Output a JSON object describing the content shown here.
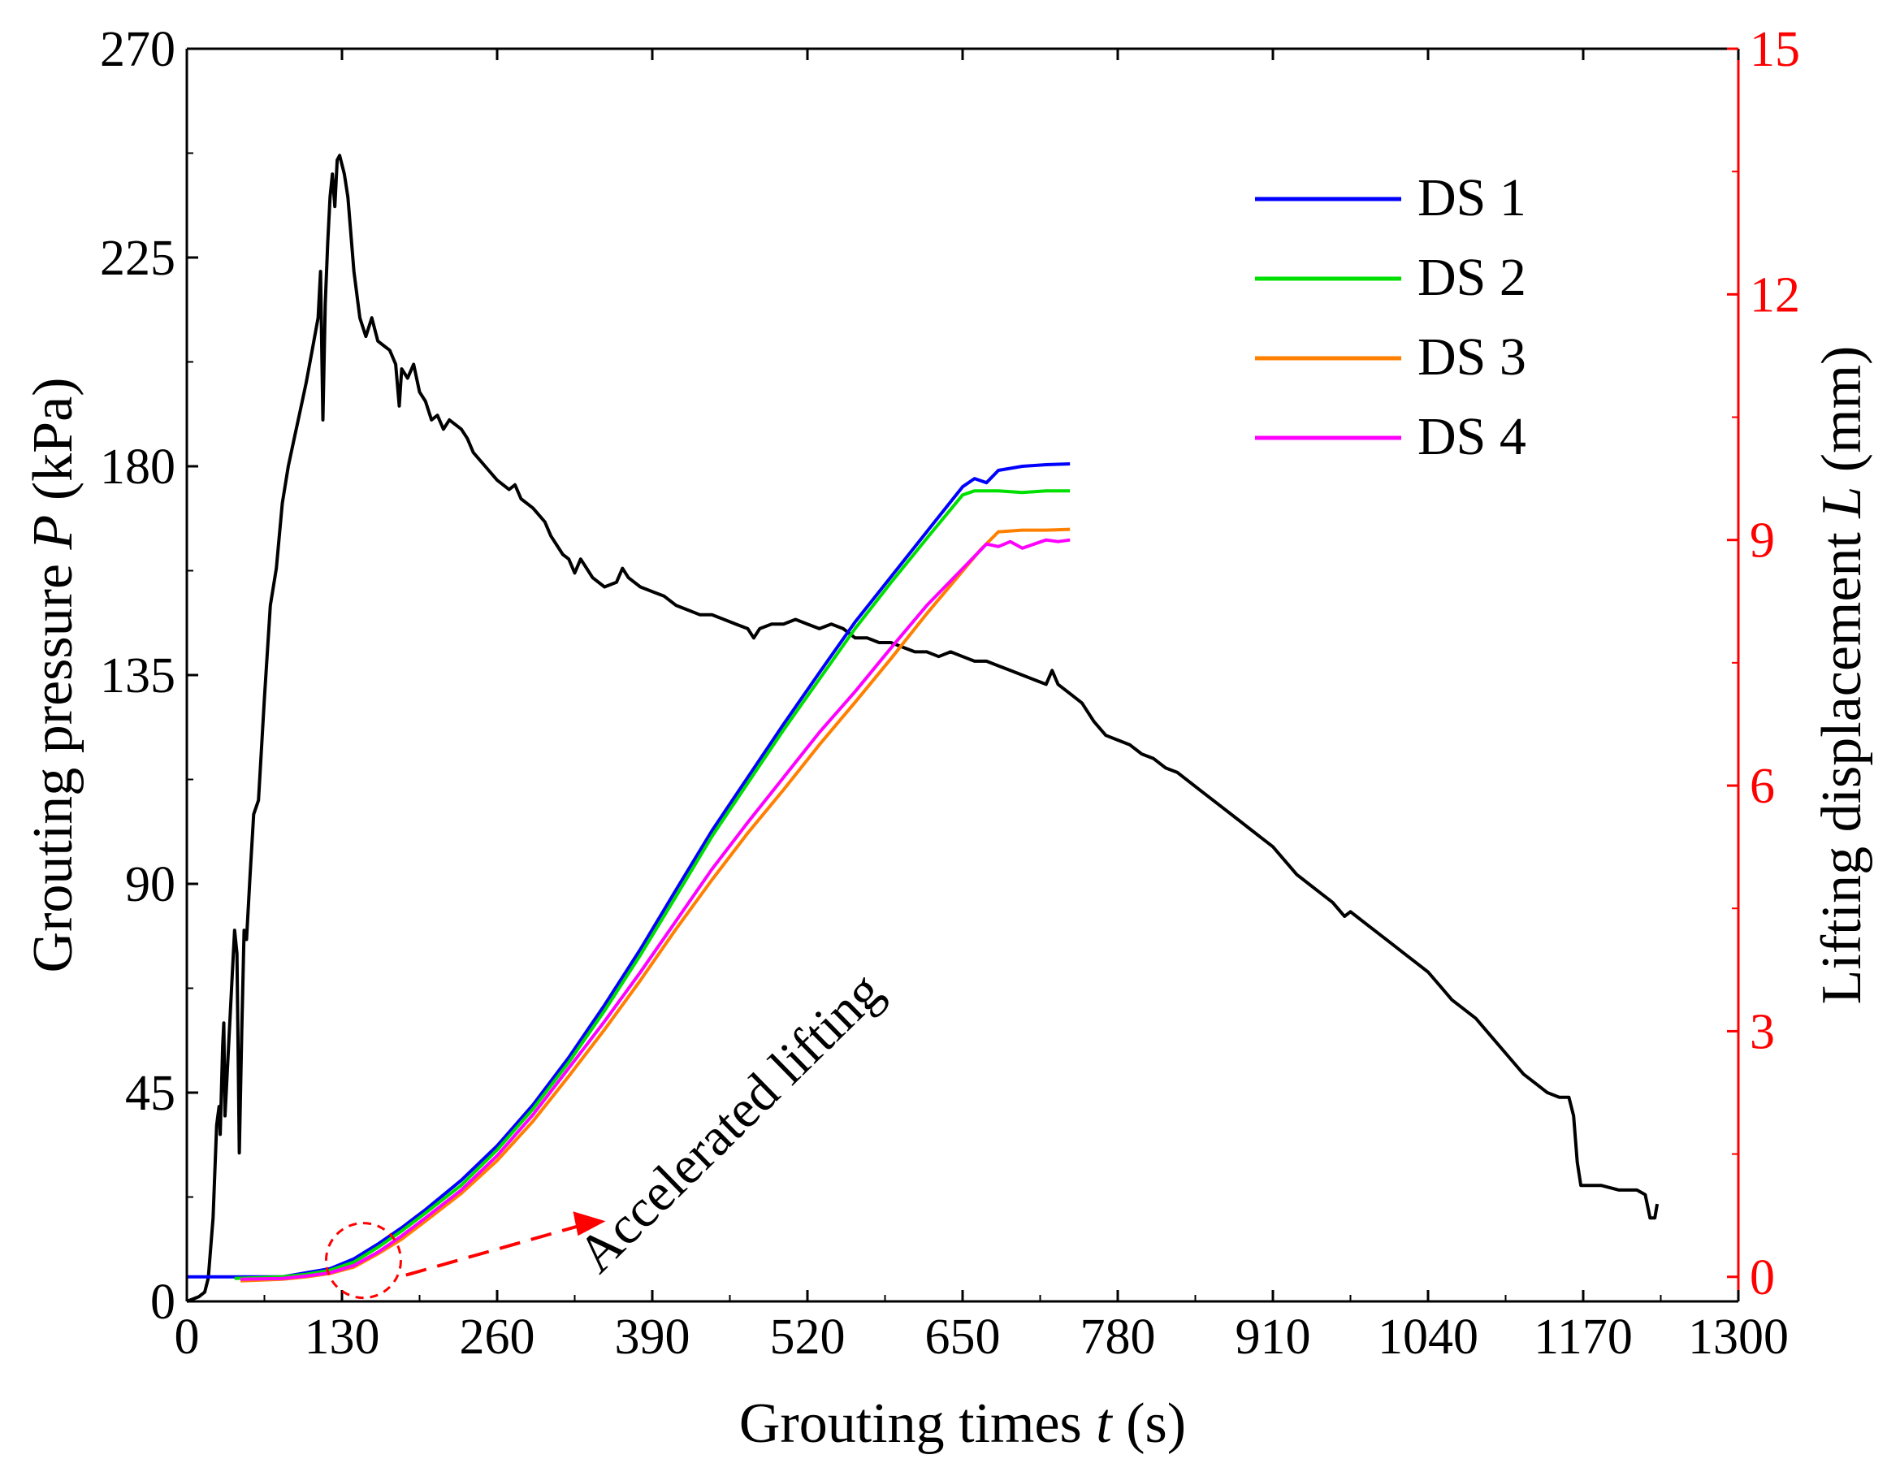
{
  "chart_data": {
    "type": "line",
    "title": "",
    "xlabel": {
      "prefix": "Grouting times ",
      "var": "t",
      "suffix": " (s)"
    },
    "ylabel_left": {
      "prefix": "Grouting pressure ",
      "var": "P",
      "suffix": " (kPa)"
    },
    "ylabel_right": {
      "prefix": "Lifting displacement ",
      "var": "L",
      "suffix": " (mm)"
    },
    "xlim": [
      0,
      1300
    ],
    "ylim_left": [
      0,
      270
    ],
    "ylim_right": [
      -0.3,
      15
    ],
    "xticks": [
      "0",
      "130",
      "260",
      "390",
      "520",
      "650",
      "780",
      "910",
      "1040",
      "1170",
      "1300"
    ],
    "yticks_left": [
      "0",
      "45",
      "90",
      "135",
      "180",
      "225",
      "270"
    ],
    "yticks_right": [
      "0",
      "3",
      "6",
      "9",
      "12",
      "15"
    ],
    "right_axis_color": "#ff0000",
    "pressure_series": {
      "name": "Grouting pressure P",
      "axis": "left",
      "color": "#000000",
      "points": [
        [
          0,
          0
        ],
        [
          10,
          1
        ],
        [
          15,
          2
        ],
        [
          18,
          5
        ],
        [
          22,
          18
        ],
        [
          25,
          38
        ],
        [
          27,
          42
        ],
        [
          28,
          36
        ],
        [
          30,
          55
        ],
        [
          31,
          60
        ],
        [
          32,
          40
        ],
        [
          35,
          55
        ],
        [
          38,
          70
        ],
        [
          40,
          80
        ],
        [
          42,
          75
        ],
        [
          44,
          32
        ],
        [
          46,
          58
        ],
        [
          48,
          80
        ],
        [
          50,
          78
        ],
        [
          53,
          92
        ],
        [
          56,
          105
        ],
        [
          60,
          108
        ],
        [
          65,
          130
        ],
        [
          70,
          150
        ],
        [
          75,
          158
        ],
        [
          80,
          172
        ],
        [
          85,
          180
        ],
        [
          90,
          186
        ],
        [
          95,
          192
        ],
        [
          100,
          198
        ],
        [
          105,
          205
        ],
        [
          110,
          212
        ],
        [
          112,
          222
        ],
        [
          114,
          190
        ],
        [
          116,
          215
        ],
        [
          118,
          228
        ],
        [
          120,
          238
        ],
        [
          122,
          243
        ],
        [
          124,
          236
        ],
        [
          126,
          246
        ],
        [
          128,
          247
        ],
        [
          130,
          245
        ],
        [
          132,
          243
        ],
        [
          135,
          238
        ],
        [
          140,
          222
        ],
        [
          145,
          212
        ],
        [
          150,
          208
        ],
        [
          155,
          212
        ],
        [
          160,
          207
        ],
        [
          165,
          206
        ],
        [
          170,
          205
        ],
        [
          175,
          202
        ],
        [
          178,
          193
        ],
        [
          180,
          201
        ],
        [
          185,
          199
        ],
        [
          190,
          202
        ],
        [
          195,
          196
        ],
        [
          200,
          194
        ],
        [
          205,
          190
        ],
        [
          210,
          191
        ],
        [
          215,
          188
        ],
        [
          220,
          190
        ],
        [
          230,
          188
        ],
        [
          235,
          186
        ],
        [
          240,
          183
        ],
        [
          250,
          180
        ],
        [
          260,
          177
        ],
        [
          270,
          175
        ],
        [
          275,
          176
        ],
        [
          280,
          173
        ],
        [
          290,
          171
        ],
        [
          300,
          168
        ],
        [
          305,
          165
        ],
        [
          310,
          163
        ],
        [
          315,
          161
        ],
        [
          320,
          160
        ],
        [
          325,
          157
        ],
        [
          330,
          160
        ],
        [
          335,
          158
        ],
        [
          340,
          156
        ],
        [
          350,
          154
        ],
        [
          360,
          155
        ],
        [
          365,
          158
        ],
        [
          370,
          156
        ],
        [
          380,
          154
        ],
        [
          390,
          153
        ],
        [
          400,
          152
        ],
        [
          410,
          150
        ],
        [
          420,
          149
        ],
        [
          430,
          148
        ],
        [
          440,
          148
        ],
        [
          450,
          147
        ],
        [
          460,
          146
        ],
        [
          470,
          145
        ],
        [
          475,
          143
        ],
        [
          480,
          145
        ],
        [
          490,
          146
        ],
        [
          500,
          146
        ],
        [
          510,
          147
        ],
        [
          520,
          146
        ],
        [
          530,
          145
        ],
        [
          540,
          146
        ],
        [
          550,
          145
        ],
        [
          560,
          143
        ],
        [
          570,
          143
        ],
        [
          580,
          142
        ],
        [
          590,
          142
        ],
        [
          600,
          141
        ],
        [
          610,
          140
        ],
        [
          620,
          140
        ],
        [
          630,
          139
        ],
        [
          640,
          140
        ],
        [
          650,
          139
        ],
        [
          660,
          138
        ],
        [
          670,
          138
        ],
        [
          680,
          137
        ],
        [
          690,
          136
        ],
        [
          700,
          135
        ],
        [
          710,
          134
        ],
        [
          720,
          133
        ],
        [
          725,
          136
        ],
        [
          730,
          133
        ],
        [
          740,
          131
        ],
        [
          750,
          129
        ],
        [
          760,
          125
        ],
        [
          770,
          122
        ],
        [
          780,
          121
        ],
        [
          790,
          120
        ],
        [
          800,
          118
        ],
        [
          810,
          117
        ],
        [
          820,
          115
        ],
        [
          830,
          114
        ],
        [
          840,
          112
        ],
        [
          850,
          110
        ],
        [
          860,
          108
        ],
        [
          870,
          106
        ],
        [
          880,
          104
        ],
        [
          890,
          102
        ],
        [
          900,
          100
        ],
        [
          910,
          98
        ],
        [
          920,
          95
        ],
        [
          930,
          92
        ],
        [
          940,
          90
        ],
        [
          950,
          88
        ],
        [
          960,
          86
        ],
        [
          970,
          83
        ],
        [
          975,
          84
        ],
        [
          980,
          83
        ],
        [
          990,
          81
        ],
        [
          1000,
          79
        ],
        [
          1010,
          77
        ],
        [
          1020,
          75
        ],
        [
          1030,
          73
        ],
        [
          1040,
          71
        ],
        [
          1050,
          68
        ],
        [
          1060,
          65
        ],
        [
          1070,
          63
        ],
        [
          1080,
          61
        ],
        [
          1090,
          58
        ],
        [
          1100,
          55
        ],
        [
          1110,
          52
        ],
        [
          1120,
          49
        ],
        [
          1130,
          47
        ],
        [
          1140,
          45
        ],
        [
          1150,
          44
        ],
        [
          1158,
          44
        ],
        [
          1162,
          40
        ],
        [
          1165,
          30
        ],
        [
          1168,
          25
        ],
        [
          1175,
          25
        ],
        [
          1185,
          25
        ],
        [
          1200,
          24
        ],
        [
          1215,
          24
        ],
        [
          1222,
          23
        ],
        [
          1226,
          18
        ],
        [
          1230,
          18
        ],
        [
          1232,
          21
        ]
      ]
    },
    "series": [
      {
        "name": "DS 1",
        "axis": "right",
        "color": "#0000ff",
        "points": [
          [
            0,
            0
          ],
          [
            50,
            0
          ],
          [
            80,
            0
          ],
          [
            100,
            0.05
          ],
          [
            120,
            0.1
          ],
          [
            140,
            0.22
          ],
          [
            160,
            0.4
          ],
          [
            180,
            0.6
          ],
          [
            200,
            0.82
          ],
          [
            230,
            1.18
          ],
          [
            260,
            1.6
          ],
          [
            290,
            2.1
          ],
          [
            320,
            2.68
          ],
          [
            350,
            3.32
          ],
          [
            380,
            4.0
          ],
          [
            410,
            4.73
          ],
          [
            440,
            5.45
          ],
          [
            470,
            6.1
          ],
          [
            500,
            6.75
          ],
          [
            530,
            7.38
          ],
          [
            560,
            8.0
          ],
          [
            590,
            8.55
          ],
          [
            620,
            9.1
          ],
          [
            650,
            9.65
          ],
          [
            660,
            9.75
          ],
          [
            670,
            9.7
          ],
          [
            680,
            9.85
          ],
          [
            700,
            9.9
          ],
          [
            720,
            9.92
          ],
          [
            740,
            9.93
          ]
        ]
      },
      {
        "name": "DS 2",
        "axis": "right",
        "color": "#00e000",
        "points": [
          [
            40,
            -0.02
          ],
          [
            80,
            0
          ],
          [
            100,
            0.03
          ],
          [
            120,
            0.08
          ],
          [
            140,
            0.18
          ],
          [
            160,
            0.36
          ],
          [
            180,
            0.56
          ],
          [
            200,
            0.78
          ],
          [
            230,
            1.12
          ],
          [
            260,
            1.55
          ],
          [
            290,
            2.05
          ],
          [
            320,
            2.62
          ],
          [
            350,
            3.25
          ],
          [
            380,
            3.93
          ],
          [
            410,
            4.65
          ],
          [
            440,
            5.38
          ],
          [
            470,
            6.03
          ],
          [
            500,
            6.68
          ],
          [
            530,
            7.3
          ],
          [
            560,
            7.92
          ],
          [
            590,
            8.48
          ],
          [
            620,
            9.02
          ],
          [
            650,
            9.55
          ],
          [
            660,
            9.6
          ],
          [
            680,
            9.6
          ],
          [
            700,
            9.58
          ],
          [
            720,
            9.6
          ],
          [
            740,
            9.6
          ]
        ]
      },
      {
        "name": "DS 3",
        "axis": "right",
        "color": "#ff8000",
        "points": [
          [
            45,
            -0.05
          ],
          [
            80,
            -0.03
          ],
          [
            100,
            0
          ],
          [
            120,
            0.04
          ],
          [
            140,
            0.12
          ],
          [
            160,
            0.28
          ],
          [
            180,
            0.46
          ],
          [
            200,
            0.68
          ],
          [
            230,
            1.02
          ],
          [
            260,
            1.42
          ],
          [
            290,
            1.9
          ],
          [
            320,
            2.45
          ],
          [
            350,
            3.02
          ],
          [
            380,
            3.62
          ],
          [
            410,
            4.25
          ],
          [
            440,
            4.85
          ],
          [
            470,
            5.42
          ],
          [
            500,
            5.95
          ],
          [
            530,
            6.5
          ],
          [
            560,
            7.02
          ],
          [
            590,
            7.55
          ],
          [
            620,
            8.1
          ],
          [
            650,
            8.62
          ],
          [
            665,
            8.88
          ],
          [
            680,
            9.1
          ],
          [
            700,
            9.12
          ],
          [
            720,
            9.12
          ],
          [
            740,
            9.13
          ]
        ]
      },
      {
        "name": "DS 4",
        "axis": "right",
        "color": "#ff00ff",
        "points": [
          [
            45,
            -0.03
          ],
          [
            80,
            -0.02
          ],
          [
            100,
            0.01
          ],
          [
            120,
            0.05
          ],
          [
            140,
            0.14
          ],
          [
            160,
            0.3
          ],
          [
            180,
            0.5
          ],
          [
            200,
            0.72
          ],
          [
            230,
            1.06
          ],
          [
            260,
            1.48
          ],
          [
            290,
            1.98
          ],
          [
            320,
            2.55
          ],
          [
            350,
            3.12
          ],
          [
            380,
            3.72
          ],
          [
            410,
            4.35
          ],
          [
            440,
            4.98
          ],
          [
            470,
            5.55
          ],
          [
            500,
            6.1
          ],
          [
            530,
            6.65
          ],
          [
            560,
            7.15
          ],
          [
            590,
            7.68
          ],
          [
            620,
            8.2
          ],
          [
            650,
            8.65
          ],
          [
            670,
            8.95
          ],
          [
            680,
            8.92
          ],
          [
            690,
            8.98
          ],
          [
            700,
            8.9
          ],
          [
            710,
            8.95
          ],
          [
            720,
            9.0
          ],
          [
            730,
            8.98
          ],
          [
            740,
            9.0
          ]
        ]
      }
    ],
    "legend": {
      "placement": "top-right",
      "entries": [
        "DS 1",
        "DS 2",
        "DS 3",
        "DS 4"
      ]
    },
    "annotation": {
      "text": "Accelerated lifting",
      "x": 290,
      "y_left": 8,
      "circle_center": [
        148,
        0.2
      ],
      "arrow_from": [
        170,
        0.2
      ],
      "arrow_to": [
        310,
        0.6
      ]
    },
    "grid": false
  }
}
